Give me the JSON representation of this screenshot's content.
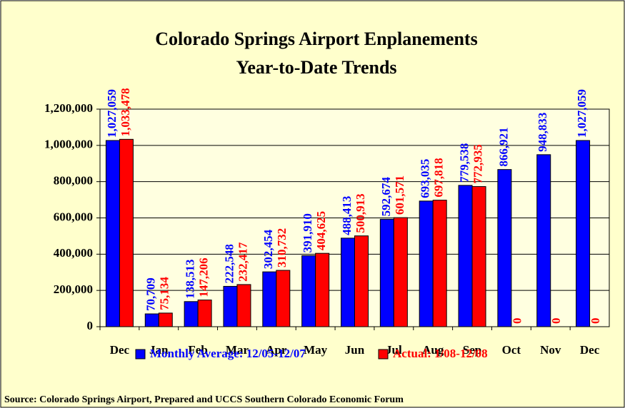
{
  "chart_data": {
    "type": "bar",
    "title": "Colorado Springs Airport Enplanements",
    "subtitle": "Year-to-Date Trends",
    "source": "Source: Colorado Springs Airport, Prepared and UCCS Southern Colorado Economic Forum",
    "categories": [
      "Dec",
      "Jan",
      "Feb",
      "Mar",
      "Apr",
      "May",
      "Jun",
      "Jul",
      "Aug",
      "Sep",
      "Oct",
      "Nov",
      "Dec"
    ],
    "series": [
      {
        "name": "Monthly Average: 12/05-12/07",
        "color": "#0000ff",
        "values": [
          1027059,
          70709,
          138513,
          222548,
          302454,
          391910,
          488413,
          592674,
          693035,
          779538,
          866921,
          948833,
          1027059
        ],
        "value_labels": [
          "1,027,059",
          "70,709",
          "138,513",
          "222,548",
          "302,454",
          "391,910",
          "488,413",
          "592,674",
          "693,035",
          "779,538",
          "866,921",
          "948,833",
          "1,027,059"
        ]
      },
      {
        "name": "Actual: 1/08-12/08",
        "color": "#ff0000",
        "values": [
          1033478,
          75134,
          147206,
          232417,
          310732,
          404625,
          500913,
          601571,
          697818,
          772935,
          0,
          0,
          0
        ],
        "value_labels": [
          "1,033,478",
          "75,134",
          "147,206",
          "232,417",
          "310,732",
          "404,625",
          "500,913",
          "601,571",
          "697,818",
          "772,935",
          "0",
          "0",
          "0"
        ]
      }
    ],
    "ylim": [
      0,
      1200000
    ],
    "yticks": [
      {
        "value": 0,
        "label": "0"
      },
      {
        "value": 200000,
        "label": "200,000"
      },
      {
        "value": 400000,
        "label": "400,000"
      },
      {
        "value": 600000,
        "label": "600,000"
      },
      {
        "value": 800000,
        "label": "800,000"
      },
      {
        "value": 1000000,
        "label": "1,000,000"
      },
      {
        "value": 1200000,
        "label": "1,200,000"
      }
    ],
    "grid": true,
    "legend": "bottom"
  }
}
